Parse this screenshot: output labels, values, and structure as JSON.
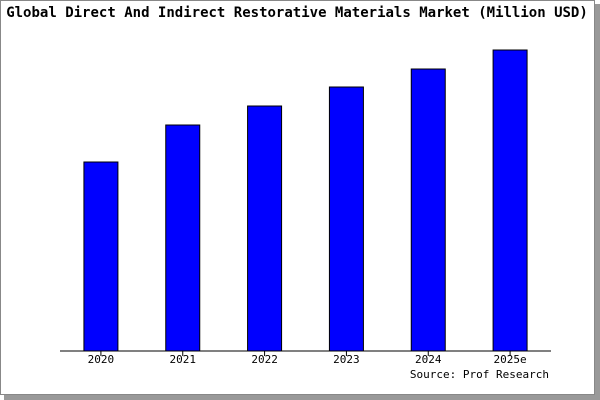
{
  "chart_data": {
    "type": "bar",
    "title": "Global Direct And Indirect Restorative Materials Market (Million USD)",
    "categories": [
      "2020",
      "2021",
      "2022",
      "2023",
      "2024",
      "2025e"
    ],
    "values": [
      189,
      226,
      245,
      264,
      282,
      301
    ],
    "color": "#0000ff",
    "source": "Source: Prof Research"
  }
}
